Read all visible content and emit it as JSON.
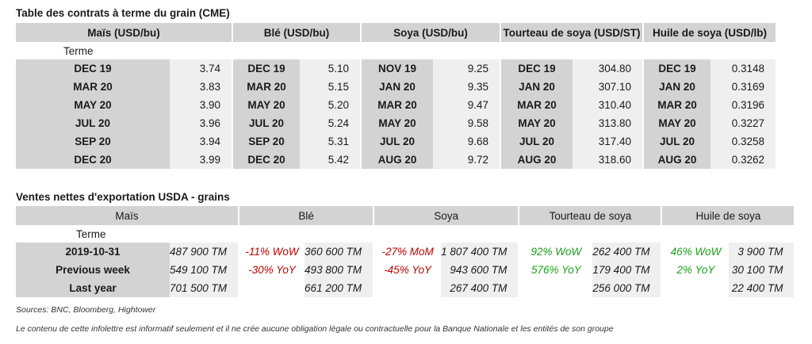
{
  "futures": {
    "title": "Table des contrats à terme du grain (CME)",
    "headers": [
      "Maïs (USD/bu)",
      "Blé (USD/bu)",
      "Soya (USD/bu)",
      "Tourteau de soya (USD/ST)",
      "Huile de soya (USD/lb)"
    ],
    "terme_label": "Terme",
    "rows": [
      {
        "c1": "DEC 19",
        "v1": "3.74",
        "c2": "DEC 19",
        "v2": "5.10",
        "c3": "NOV 19",
        "v3": "9.25",
        "c4": "DEC 19",
        "v4": "304.80",
        "c5": "DEC 19",
        "v5": "0.3148"
      },
      {
        "c1": "MAR 20",
        "v1": "3.83",
        "c2": "MAR 20",
        "v2": "5.15",
        "c3": "JAN 20",
        "v3": "9.35",
        "c4": "JAN 20",
        "v4": "307.10",
        "c5": "JAN 20",
        "v5": "0.3169"
      },
      {
        "c1": "MAY 20",
        "v1": "3.90",
        "c2": "MAY 20",
        "v2": "5.20",
        "c3": "MAR 20",
        "v3": "9.47",
        "c4": "MAR 20",
        "v4": "310.40",
        "c5": "MAR 20",
        "v5": "0.3196"
      },
      {
        "c1": "JUL 20",
        "v1": "3.96",
        "c2": "JUL 20",
        "v2": "5.24",
        "c3": "MAY 20",
        "v3": "9.58",
        "c4": "MAY 20",
        "v4": "313.80",
        "c5": "MAY 20",
        "v5": "0.3227"
      },
      {
        "c1": "SEP 20",
        "v1": "3.94",
        "c2": "SEP 20",
        "v2": "5.31",
        "c3": "JUL 20",
        "v3": "9.68",
        "c4": "JUL 20",
        "v4": "317.40",
        "c5": "JUL 20",
        "v5": "0.3258"
      },
      {
        "c1": "DEC 20",
        "v1": "3.99",
        "c2": "DEC 20",
        "v2": "5.42",
        "c3": "AUG 20",
        "v3": "9.72",
        "c4": "AUG 20",
        "v4": "318.60",
        "c5": "AUG 20",
        "v5": "0.3262"
      }
    ]
  },
  "exports": {
    "title": "Ventes nettes d'exportation USDA - grains",
    "headers": [
      "Maïs",
      "Blé",
      "Soya",
      "Tourteau de soya",
      "Huile de soya"
    ],
    "terme_label": "Terme",
    "rows": [
      {
        "label": "2019-10-31",
        "mais": "487 900 TM",
        "ble_chg": "-11% WoW",
        "ble": "360 600 TM",
        "soya_chg": "-27% MoM",
        "soya": "1 807 400 TM",
        "tourteau_chg": "92% WoW",
        "tourteau": "262 400 TM",
        "huile_chg": "46% WoW",
        "huile": "3 900 TM"
      },
      {
        "label": "Previous week",
        "mais": "549 100 TM",
        "ble_chg": "-30% YoY",
        "ble": "493 800 TM",
        "soya_chg": "-45% YoY",
        "soya": "943 600 TM",
        "tourteau_chg": "576% YoY",
        "tourteau": "179 400 TM",
        "huile_chg": "2% YoY",
        "huile": "30 100 TM"
      },
      {
        "label": "Last year",
        "mais": "701 500 TM",
        "ble_chg": "",
        "ble": "661 200 TM",
        "soya_chg": "",
        "soya": "267 400 TM",
        "tourteau_chg": "",
        "tourteau": "256 000 TM",
        "huile_chg": "",
        "huile": "22 400 TM"
      }
    ]
  },
  "sources": "Sources: BNC, Bloomberg, Hightower",
  "disclaimer": "Le contenu de cette infolettre est informatif seulement et il ne crée aucune obligation légale ou contractuelle pour la Banque Nationale et les entités de son groupe",
  "colors": {
    "header_bg": "#d3d3d3",
    "value_bg": "#efefef",
    "negative": "#c00000",
    "positive": "#1aa019"
  }
}
